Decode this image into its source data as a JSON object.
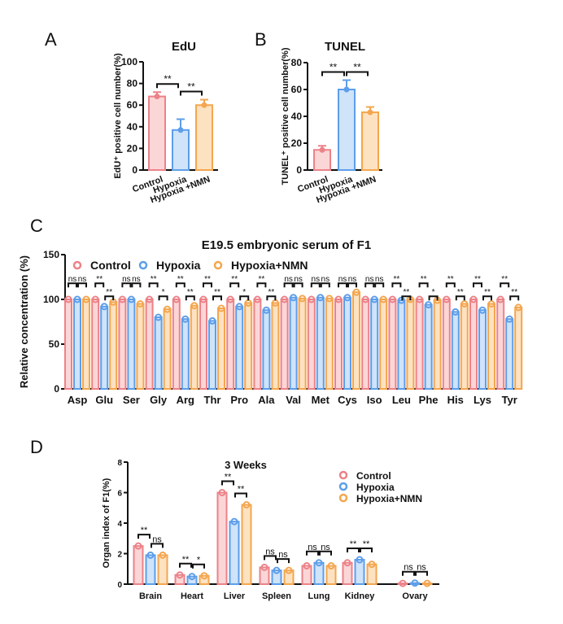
{
  "colors": {
    "control": {
      "stroke": "#ec8288",
      "fill": "#fbd6d7"
    },
    "hypoxia": {
      "stroke": "#5d9eea",
      "fill": "#cfe3f9"
    },
    "hypoxia_nmn": {
      "stroke": "#f4a64e",
      "fill": "#fde2c2"
    }
  },
  "chart_data": [
    {
      "panel": "A",
      "type": "bar",
      "title": "EdU",
      "ylabel": "EdU⁺ positive cell number(%)",
      "categories": [
        "Control",
        "Hypoxia",
        "Hypoxia +NMN"
      ],
      "values": [
        68,
        37,
        60
      ],
      "errors": [
        4,
        10,
        5
      ],
      "ylim": [
        0,
        100
      ],
      "yticks": [
        0,
        20,
        40,
        60,
        80,
        100
      ],
      "significance": [
        {
          "pair": [
            0,
            1
          ],
          "label": "**"
        },
        {
          "pair": [
            1,
            2
          ],
          "label": "**"
        }
      ]
    },
    {
      "panel": "B",
      "type": "bar",
      "title": "TUNEL",
      "ylabel": "TUNEL⁺ positive cell number(%)",
      "categories": [
        "Control",
        "Hypoxia",
        "Hypoxia +NMN"
      ],
      "values": [
        15,
        60,
        43
      ],
      "errors": [
        3,
        7,
        4
      ],
      "ylim": [
        0,
        80
      ],
      "yticks": [
        0,
        20,
        40,
        60,
        80
      ],
      "significance": [
        {
          "pair": [
            0,
            1
          ],
          "label": "**"
        },
        {
          "pair": [
            1,
            2
          ],
          "label": "**"
        }
      ]
    },
    {
      "panel": "C",
      "type": "bar",
      "title": "E19.5 embryonic serum of F1",
      "ylabel": "Relative concentration (%)",
      "legend_position": "top-left",
      "ylim": [
        0,
        150
      ],
      "yticks": [
        0,
        50,
        100,
        150
      ],
      "categories": [
        "Asp",
        "Glu",
        "Ser",
        "Gly",
        "Arg",
        "Thr",
        "Pro",
        "Ala",
        "Val",
        "Met",
        "Cys",
        "Iso",
        "Leu",
        "Phe",
        "His",
        "Lys",
        "Tyr"
      ],
      "series": [
        {
          "name": "Control",
          "values": [
            100,
            100,
            100,
            100,
            100,
            100,
            100,
            100,
            100,
            100,
            100,
            100,
            100,
            100,
            100,
            100,
            100
          ]
        },
        {
          "name": "Hypoxia",
          "values": [
            100,
            92,
            100,
            80,
            78,
            76,
            92,
            88,
            102,
            102,
            102,
            100,
            99,
            94,
            86,
            88,
            78
          ]
        },
        {
          "name": "Hypoxia+NMN",
          "values": [
            100,
            97,
            95,
            89,
            93,
            90,
            96,
            96,
            101,
            101,
            108,
            100,
            100,
            99,
            95,
            95,
            91
          ]
        }
      ],
      "significance": [
        [
          "ns",
          "ns"
        ],
        [
          "**",
          "**"
        ],
        [
          "ns",
          "ns"
        ],
        [
          "**",
          "*"
        ],
        [
          "**",
          "**"
        ],
        [
          "**",
          "**"
        ],
        [
          "**",
          "*"
        ],
        [
          "**",
          "**"
        ],
        [
          "ns",
          "ns"
        ],
        [
          "ns",
          "ns"
        ],
        [
          "ns",
          "ns"
        ],
        [
          "ns",
          "ns"
        ],
        [
          "**",
          "**"
        ],
        [
          "**",
          "*"
        ],
        [
          "**",
          "**"
        ],
        [
          "**",
          "**"
        ],
        [
          "**",
          "**"
        ]
      ]
    },
    {
      "panel": "D",
      "type": "bar",
      "title": "3 Weeks",
      "ylabel": "Organ index of F1(%)",
      "legend_position": "top-right",
      "ylim": [
        0,
        8
      ],
      "yticks": [
        0,
        2,
        4,
        6,
        8
      ],
      "categories": [
        "Brain",
        "Heart",
        "Liver",
        "Spleen",
        "Lung",
        "Kidney",
        "Ovary"
      ],
      "series": [
        {
          "name": "Control",
          "values": [
            2.5,
            0.6,
            6.0,
            1.1,
            1.2,
            1.4,
            0.05
          ]
        },
        {
          "name": "Hypoxia",
          "values": [
            1.9,
            0.5,
            4.1,
            0.9,
            1.4,
            1.6,
            0.07
          ]
        },
        {
          "name": "Hypoxia+NMN",
          "values": [
            1.9,
            0.55,
            5.2,
            0.9,
            1.2,
            1.3,
            0.05
          ]
        }
      ],
      "significance": [
        [
          "**",
          "ns"
        ],
        [
          "**",
          "*"
        ],
        [
          "**",
          "**"
        ],
        [
          "ns",
          "ns"
        ],
        [
          "ns",
          "ns"
        ],
        [
          "**",
          "**"
        ],
        [
          "ns",
          "ns"
        ]
      ]
    }
  ]
}
